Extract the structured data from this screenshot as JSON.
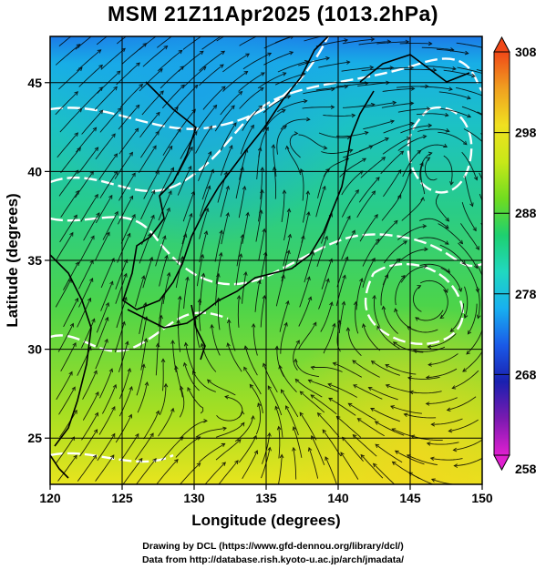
{
  "title": "MSM 21Z11Apr2025 (1013.2hPa)",
  "chart_data": {
    "type": "heatmap",
    "title": "MSM 21Z11Apr2025 (1013.2hPa)",
    "xlabel": "Longitude (degrees)",
    "ylabel": "Latitude  (degrees)",
    "xlim": [
      120,
      150
    ],
    "ylim": [
      22.4,
      47.6
    ],
    "x_ticks": [
      "120",
      "125",
      "130",
      "135",
      "140",
      "145",
      "150"
    ],
    "y_ticks": [
      "25",
      "30",
      "35",
      "40",
      "45"
    ],
    "x_tick_values": [
      120,
      125,
      130,
      135,
      140,
      145,
      150
    ],
    "y_tick_values": [
      25,
      30,
      35,
      40,
      45
    ],
    "grid": true,
    "colorbar": {
      "range": [
        258,
        308
      ],
      "ticks": [
        "308",
        "298",
        "288",
        "278",
        "268",
        "258"
      ],
      "tick_values": [
        308,
        298,
        288,
        278,
        268,
        258
      ],
      "stops": [
        "#e020d0",
        "#7a1ab0",
        "#1a20b0",
        "#1a5ae8",
        "#18b0f0",
        "#20d8c0",
        "#1ed070",
        "#70dc20",
        "#c8e818",
        "#f0e020",
        "#f0a020",
        "#f04818"
      ],
      "extend": "both"
    }
  },
  "credits": {
    "line1": "Drawing by DCL (https://www.gfd-dennou.org/library/dcl/)",
    "line2": "Data from http://database.rish.kyoto-u.ac.jp/arch/jmadata/"
  }
}
